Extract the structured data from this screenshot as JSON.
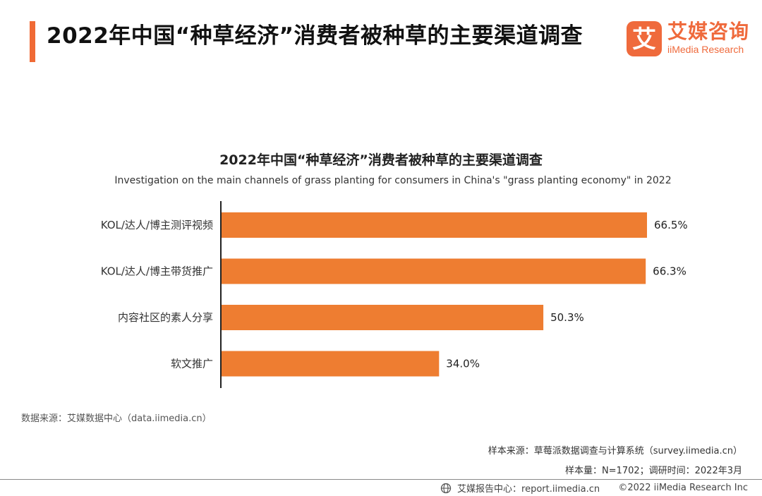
{
  "header": {
    "title": "2022年中国“种草经济”消费者被种草的主要渠道调查",
    "logo_name": "艾媒咨询",
    "logo_sub": "iiMedia Research",
    "logo_glyph": "艾",
    "accent_color": "#f06a35"
  },
  "chart_data": {
    "type": "bar",
    "orientation": "horizontal",
    "title": "2022年中国“种草经济”消费者被种草的主要渠道调查",
    "subtitle": "Investigation on the main channels of grass planting for consumers in China's \"grass planting economy\" in 2022",
    "categories": [
      "KOL/达人/博主测评视频",
      "KOL/达人/博主带货推广",
      "内容社区的素人分享",
      "软文推广"
    ],
    "values": [
      66.5,
      66.3,
      50.3,
      34.0
    ],
    "value_labels": [
      "66.5%",
      "66.3%",
      "50.3%",
      "34.0%"
    ],
    "unit": "%",
    "xlim": [
      0,
      70
    ],
    "grid": false,
    "bar_color": "#ee7d31"
  },
  "sources": {
    "data_source": "数据来源：艾媒数据中心（data.iimedia.cn）",
    "sample_source": "样本来源：草莓派数据调查与计算系统（survey.iimedia.cn）",
    "sample_info": "样本量：N=1702；调研时间：2022年3月"
  },
  "footer": {
    "report_center": "艾媒报告中心：report.iimedia.cn",
    "copyright": "©2022  iiMedia Research  Inc",
    "icon": "globe-icon"
  }
}
